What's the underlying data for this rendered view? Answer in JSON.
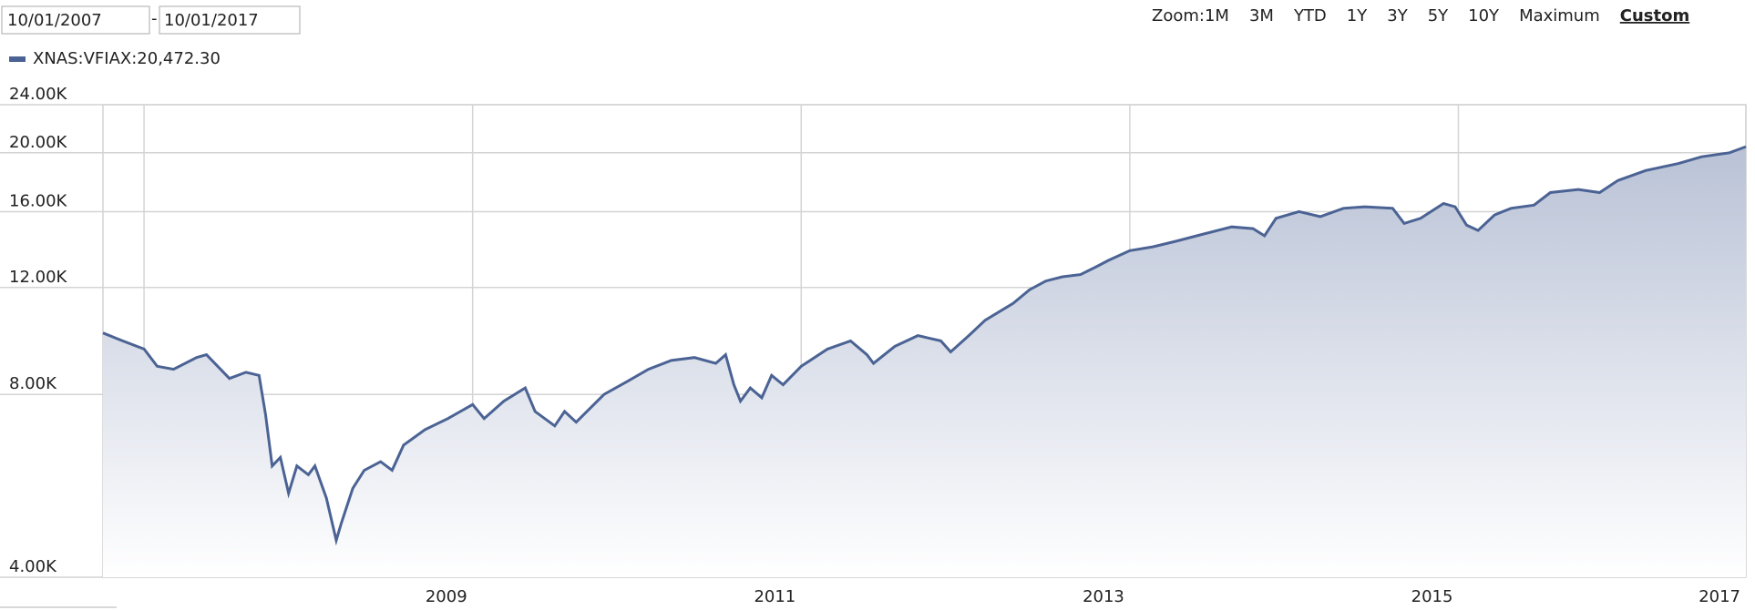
{
  "controls": {
    "start_date": "10/01/2007",
    "date_separator": "-",
    "end_date": "10/01/2017",
    "zoom_label": "Zoom:",
    "zoom_options": [
      "1M",
      "3M",
      "YTD",
      "1Y",
      "3Y",
      "5Y",
      "10Y",
      "Maximum",
      "Custom"
    ],
    "active_zoom": 8
  },
  "chart_data": {
    "type": "area",
    "log_scale": true,
    "grid": true,
    "x": [
      2007.75,
      2007.87,
      2008.0,
      2008.08,
      2008.18,
      2008.32,
      2008.38,
      2008.52,
      2008.62,
      2008.7,
      2008.74,
      2008.78,
      2008.83,
      2008.88,
      2008.93,
      2009.0,
      2009.04,
      2009.11,
      2009.17,
      2009.2,
      2009.27,
      2009.34,
      2009.44,
      2009.51,
      2009.58,
      2009.71,
      2009.85,
      2010.0,
      2010.07,
      2010.19,
      2010.32,
      2010.38,
      2010.5,
      2010.56,
      2010.63,
      2010.8,
      2010.94,
      2011.07,
      2011.21,
      2011.35,
      2011.48,
      2011.54,
      2011.59,
      2011.63,
      2011.69,
      2011.76,
      2011.82,
      2011.89,
      2012.0,
      2012.16,
      2012.3,
      2012.4,
      2012.44,
      2012.57,
      2012.71,
      2012.85,
      2012.91,
      2013.02,
      2013.12,
      2013.29,
      2013.39,
      2013.49,
      2013.59,
      2013.7,
      2013.8,
      2013.87,
      2014.0,
      2014.14,
      2014.28,
      2014.45,
      2014.62,
      2014.75,
      2014.82,
      2014.89,
      2015.03,
      2015.16,
      2015.3,
      2015.43,
      2015.6,
      2015.67,
      2015.77,
      2015.91,
      2015.98,
      2016.05,
      2016.12,
      2016.22,
      2016.32,
      2016.46,
      2016.56,
      2016.73,
      2016.86,
      2016.97,
      2017.14,
      2017.34,
      2017.48,
      2017.65,
      2017.75
    ],
    "series": [
      {
        "name": "XNAS:VFIAX:20,472.30",
        "color": "#4b6394",
        "values": [
          10100,
          9800,
          9500,
          8900,
          8800,
          9200,
          9300,
          8500,
          8700,
          8600,
          7400,
          6100,
          6300,
          5500,
          6100,
          5900,
          6100,
          5400,
          4600,
          4900,
          5600,
          6000,
          6200,
          6000,
          6600,
          7000,
          7300,
          7700,
          7300,
          7800,
          8200,
          7500,
          7100,
          7500,
          7200,
          8000,
          8400,
          8800,
          9100,
          9200,
          9000,
          9300,
          8300,
          7800,
          8200,
          7900,
          8600,
          8300,
          8900,
          9500,
          9800,
          9300,
          9000,
          9600,
          10000,
          9800,
          9400,
          10000,
          10600,
          11300,
          11900,
          12300,
          12500,
          12600,
          13000,
          13300,
          13800,
          14000,
          14300,
          14700,
          15100,
          15000,
          14600,
          15600,
          16000,
          15700,
          16200,
          16300,
          16200,
          15300,
          15600,
          16500,
          16300,
          15200,
          14900,
          15800,
          16200,
          16400,
          17200,
          17400,
          17200,
          18000,
          18700,
          19200,
          19700,
          20000,
          20472.3
        ]
      }
    ],
    "xlim": [
      2007.75,
      2017.75
    ],
    "xticks": [
      {
        "value": 2008,
        "label": null
      },
      {
        "value": 2010,
        "label": "2009"
      },
      {
        "value": 2012,
        "label": "2011"
      },
      {
        "value": 2014,
        "label": "2013"
      },
      {
        "value": 2016,
        "label": "2015"
      },
      {
        "value": 2017.75,
        "label": "2017"
      }
    ],
    "ylim": [
      4000,
      24000
    ],
    "yticks": [
      {
        "value": 4000,
        "label": "4.00K"
      },
      {
        "value": 8000,
        "label": "8.00K"
      },
      {
        "value": 12000,
        "label": "12.00K"
      },
      {
        "value": 16000,
        "label": "16.00K"
      },
      {
        "value": 20000,
        "label": "20.00K"
      },
      {
        "value": 24000,
        "label": "24.00K"
      }
    ]
  }
}
